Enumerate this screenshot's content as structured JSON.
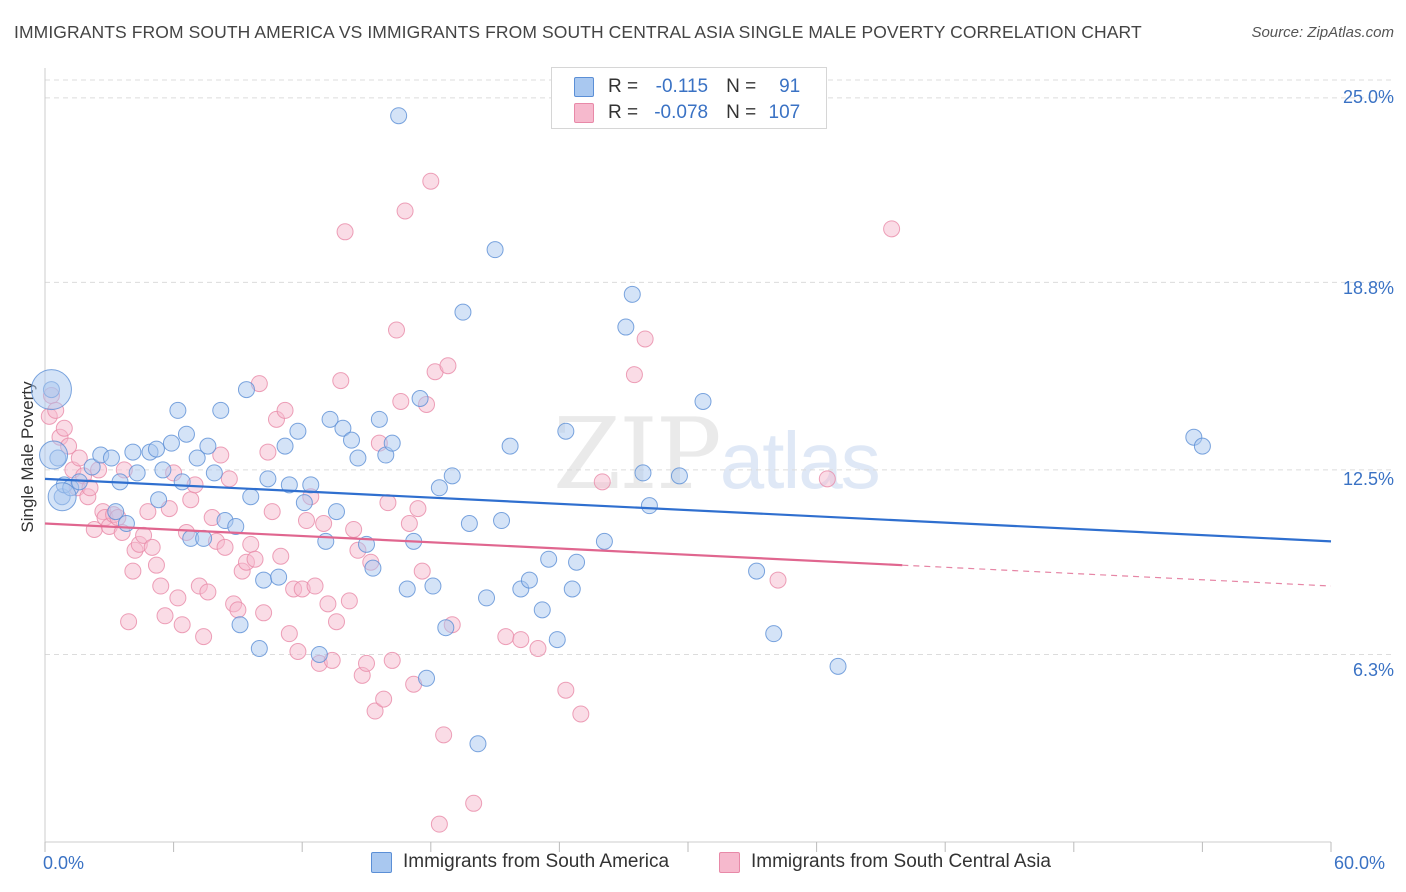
{
  "header": {
    "title": "IMMIGRANTS FROM SOUTH AMERICA VS IMMIGRANTS FROM SOUTH CENTRAL ASIA SINGLE MALE POVERTY CORRELATION CHART",
    "source": "Source: ZipAtlas.com"
  },
  "watermark": {
    "zip": "ZIP",
    "atlas": "atlas"
  },
  "legend": {
    "r_label": "R =",
    "n_label": "N =",
    "series": [
      {
        "r": "-0.115",
        "n": "91"
      },
      {
        "r": "-0.078",
        "n": "107"
      }
    ]
  },
  "colors": {
    "blue_fill": "#a9c8f0",
    "blue_stroke": "#5b8fd6",
    "blue_line": "#2f6fcf",
    "pink_fill": "#f6b9cd",
    "pink_stroke": "#e889a8",
    "pink_line": "#e0668f",
    "tick_text": "#3a72c4",
    "grid": "#dcdcdc"
  },
  "chart_data": {
    "type": "scatter",
    "title": "IMMIGRANTS FROM SOUTH AMERICA VS IMMIGRANTS FROM SOUTH CENTRAL ASIA SINGLE MALE POVERTY CORRELATION CHART",
    "xlabel": "",
    "ylabel": "Single Male Poverty",
    "xlim": [
      0,
      60
    ],
    "ylim": [
      0,
      25.6
    ],
    "x_tick_labels": [
      "0.0%",
      "60.0%"
    ],
    "y_ticks": [
      6.3,
      12.5,
      18.8,
      25.0
    ],
    "y_tick_labels": [
      "6.3%",
      "12.5%",
      "18.8%",
      "25.0%"
    ],
    "grid": true,
    "legend_position": "top-center",
    "series": [
      {
        "name": "Immigrants from South America",
        "r": -0.115,
        "n": 91,
        "trend": {
          "x": [
            0,
            60
          ],
          "y": [
            12.2,
            10.1
          ]
        },
        "points": [
          [
            0.3,
            15.2
          ],
          [
            0.6,
            12.9
          ],
          [
            0.8,
            11.6
          ],
          [
            0.9,
            12.0
          ],
          [
            1.2,
            11.9
          ],
          [
            1.6,
            12.1
          ],
          [
            2.2,
            12.6
          ],
          [
            2.6,
            13.0
          ],
          [
            3.1,
            12.9
          ],
          [
            3.3,
            11.1
          ],
          [
            3.5,
            12.1
          ],
          [
            3.8,
            10.7
          ],
          [
            4.1,
            13.1
          ],
          [
            4.3,
            12.4
          ],
          [
            4.9,
            13.1
          ],
          [
            5.2,
            13.2
          ],
          [
            5.3,
            11.5
          ],
          [
            5.5,
            12.5
          ],
          [
            5.9,
            13.4
          ],
          [
            6.2,
            14.5
          ],
          [
            6.4,
            12.1
          ],
          [
            6.6,
            13.7
          ],
          [
            6.8,
            10.2
          ],
          [
            7.1,
            12.9
          ],
          [
            7.4,
            10.2
          ],
          [
            7.6,
            13.3
          ],
          [
            7.9,
            12.4
          ],
          [
            8.2,
            14.5
          ],
          [
            8.4,
            10.8
          ],
          [
            8.9,
            10.6
          ],
          [
            9.1,
            7.3
          ],
          [
            9.4,
            15.2
          ],
          [
            9.6,
            11.6
          ],
          [
            10.0,
            6.5
          ],
          [
            10.2,
            8.8
          ],
          [
            10.4,
            12.2
          ],
          [
            10.9,
            8.9
          ],
          [
            11.2,
            13.3
          ],
          [
            11.4,
            12.0
          ],
          [
            11.8,
            13.8
          ],
          [
            12.1,
            11.4
          ],
          [
            12.4,
            12.0
          ],
          [
            12.8,
            6.3
          ],
          [
            13.1,
            10.1
          ],
          [
            13.3,
            14.2
          ],
          [
            13.6,
            11.1
          ],
          [
            13.9,
            13.9
          ],
          [
            14.3,
            13.5
          ],
          [
            14.6,
            12.9
          ],
          [
            15.0,
            10.0
          ],
          [
            15.3,
            9.2
          ],
          [
            15.6,
            14.2
          ],
          [
            15.9,
            13.0
          ],
          [
            16.2,
            13.4
          ],
          [
            16.5,
            24.4
          ],
          [
            16.9,
            8.5
          ],
          [
            17.2,
            10.1
          ],
          [
            17.5,
            14.9
          ],
          [
            17.8,
            5.5
          ],
          [
            18.1,
            8.6
          ],
          [
            18.4,
            11.9
          ],
          [
            18.7,
            7.2
          ],
          [
            19.0,
            12.3
          ],
          [
            19.5,
            17.8
          ],
          [
            19.8,
            10.7
          ],
          [
            20.2,
            3.3
          ],
          [
            20.6,
            8.2
          ],
          [
            21.0,
            19.9
          ],
          [
            21.3,
            10.8
          ],
          [
            21.7,
            13.3
          ],
          [
            22.2,
            8.5
          ],
          [
            22.6,
            8.8
          ],
          [
            23.2,
            7.8
          ],
          [
            23.5,
            9.5
          ],
          [
            23.9,
            6.8
          ],
          [
            24.3,
            13.8
          ],
          [
            24.6,
            8.5
          ],
          [
            24.8,
            9.4
          ],
          [
            26.1,
            10.1
          ],
          [
            27.1,
            17.3
          ],
          [
            27.4,
            18.4
          ],
          [
            27.9,
            12.4
          ],
          [
            28.2,
            11.3
          ],
          [
            29.6,
            12.3
          ],
          [
            30.7,
            14.8
          ],
          [
            33.2,
            9.1
          ],
          [
            34.0,
            7.0
          ],
          [
            37.0,
            5.9
          ],
          [
            53.6,
            13.6
          ],
          [
            54.0,
            13.3
          ]
        ],
        "big_points": [
          [
            0.3,
            15.2,
            "large"
          ],
          [
            0.4,
            13.0,
            "medium"
          ],
          [
            0.8,
            11.6,
            "medium"
          ]
        ]
      },
      {
        "name": "Immigrants from South Central Asia",
        "r": -0.078,
        "n": 107,
        "trend": {
          "x": [
            0,
            40
          ],
          "y": [
            10.7,
            9.3
          ]
        },
        "trend_dashed": {
          "x": [
            40,
            60
          ],
          "y": [
            9.3,
            8.6
          ]
        },
        "points": [
          [
            0.2,
            14.3
          ],
          [
            0.3,
            15.0
          ],
          [
            0.5,
            14.5
          ],
          [
            0.7,
            13.6
          ],
          [
            0.9,
            13.9
          ],
          [
            1.1,
            13.3
          ],
          [
            1.3,
            12.5
          ],
          [
            1.5,
            11.9
          ],
          [
            1.6,
            12.9
          ],
          [
            1.8,
            12.3
          ],
          [
            2.0,
            11.6
          ],
          [
            2.1,
            11.9
          ],
          [
            2.3,
            10.5
          ],
          [
            2.5,
            12.5
          ],
          [
            2.7,
            11.1
          ],
          [
            2.8,
            10.9
          ],
          [
            3.0,
            10.6
          ],
          [
            3.2,
            11.0
          ],
          [
            3.4,
            10.9
          ],
          [
            3.6,
            10.4
          ],
          [
            3.7,
            12.5
          ],
          [
            3.9,
            7.4
          ],
          [
            4.1,
            9.1
          ],
          [
            4.2,
            9.8
          ],
          [
            4.4,
            10.0
          ],
          [
            4.6,
            10.3
          ],
          [
            4.8,
            11.1
          ],
          [
            5.0,
            9.9
          ],
          [
            5.2,
            9.3
          ],
          [
            5.4,
            8.6
          ],
          [
            5.6,
            7.6
          ],
          [
            5.8,
            11.2
          ],
          [
            6.0,
            12.4
          ],
          [
            6.2,
            8.2
          ],
          [
            6.4,
            7.3
          ],
          [
            6.6,
            10.4
          ],
          [
            6.8,
            11.5
          ],
          [
            7.0,
            12.0
          ],
          [
            7.2,
            8.6
          ],
          [
            7.4,
            6.9
          ],
          [
            7.6,
            8.4
          ],
          [
            7.8,
            10.9
          ],
          [
            8.0,
            10.1
          ],
          [
            8.2,
            13.0
          ],
          [
            8.4,
            9.9
          ],
          [
            8.6,
            12.2
          ],
          [
            8.8,
            8.0
          ],
          [
            9.0,
            7.8
          ],
          [
            9.2,
            9.1
          ],
          [
            9.4,
            9.4
          ],
          [
            9.6,
            10.0
          ],
          [
            9.8,
            9.5
          ],
          [
            10.0,
            15.4
          ],
          [
            10.2,
            7.7
          ],
          [
            10.4,
            13.1
          ],
          [
            10.6,
            11.1
          ],
          [
            10.8,
            14.2
          ],
          [
            11.0,
            9.6
          ],
          [
            11.2,
            14.5
          ],
          [
            11.4,
            7.0
          ],
          [
            11.6,
            8.5
          ],
          [
            11.8,
            6.4
          ],
          [
            12.0,
            8.5
          ],
          [
            12.2,
            10.8
          ],
          [
            12.4,
            11.6
          ],
          [
            12.6,
            8.6
          ],
          [
            12.8,
            6.0
          ],
          [
            13.0,
            10.7
          ],
          [
            13.2,
            8.0
          ],
          [
            13.4,
            6.1
          ],
          [
            13.6,
            7.4
          ],
          [
            13.8,
            15.5
          ],
          [
            14.0,
            20.5
          ],
          [
            14.2,
            8.1
          ],
          [
            14.4,
            10.5
          ],
          [
            14.6,
            9.8
          ],
          [
            14.8,
            5.6
          ],
          [
            15.0,
            6.0
          ],
          [
            15.2,
            9.4
          ],
          [
            15.4,
            4.4
          ],
          [
            15.6,
            13.4
          ],
          [
            15.8,
            4.8
          ],
          [
            16.0,
            11.4
          ],
          [
            16.2,
            6.1
          ],
          [
            16.4,
            17.2
          ],
          [
            16.6,
            14.8
          ],
          [
            16.8,
            21.2
          ],
          [
            17.0,
            10.7
          ],
          [
            17.2,
            5.3
          ],
          [
            17.4,
            11.2
          ],
          [
            17.6,
            9.1
          ],
          [
            17.8,
            14.7
          ],
          [
            18.0,
            22.2
          ],
          [
            18.2,
            15.8
          ],
          [
            18.4,
            0.6
          ],
          [
            18.6,
            3.6
          ],
          [
            18.8,
            16.0
          ],
          [
            19.0,
            7.3
          ],
          [
            20.0,
            1.3
          ],
          [
            21.5,
            6.9
          ],
          [
            22.2,
            6.8
          ],
          [
            23.0,
            6.5
          ],
          [
            24.3,
            5.1
          ],
          [
            25.0,
            4.3
          ],
          [
            26.0,
            12.1
          ],
          [
            27.5,
            15.7
          ],
          [
            28.0,
            16.9
          ],
          [
            34.2,
            8.8
          ],
          [
            36.5,
            12.2
          ],
          [
            39.5,
            20.6
          ]
        ]
      }
    ]
  },
  "axes": {
    "x_left": "0.0%",
    "x_right": "60.0%",
    "y_ticks": [
      "25.0%",
      "18.8%",
      "12.5%",
      "6.3%"
    ]
  },
  "bottom_legend": {
    "items": [
      "Immigrants from South America",
      "Immigrants from South Central Asia"
    ]
  }
}
